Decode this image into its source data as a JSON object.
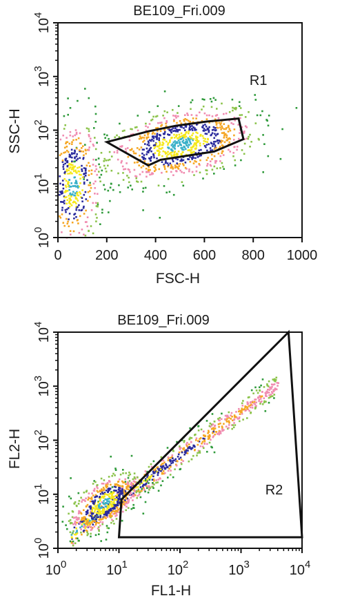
{
  "chart_data": [
    {
      "type": "scatter",
      "title": "BE109_Fri.009",
      "xlabel": "FSC-H",
      "ylabel": "SSC-H",
      "x_scale": "linear",
      "y_scale": "log",
      "xlim": [
        0,
        1000
      ],
      "ylim": [
        1,
        10000
      ],
      "x_ticks": [
        {
          "value": 0,
          "label": "0"
        },
        {
          "value": 200,
          "label": "200"
        },
        {
          "value": 400,
          "label": "400"
        },
        {
          "value": 600,
          "label": "600"
        },
        {
          "value": 800,
          "label": "800"
        },
        {
          "value": 1000,
          "label": "1000"
        }
      ],
      "y_ticks": [
        {
          "value": 1,
          "base": "10",
          "exp": "0"
        },
        {
          "value": 10,
          "base": "10",
          "exp": "1"
        },
        {
          "value": 100,
          "base": "10",
          "exp": "2"
        },
        {
          "value": 1000,
          "base": "10",
          "exp": "3"
        },
        {
          "value": 10000,
          "base": "10",
          "exp": "4"
        }
      ],
      "gate": {
        "label": "R1",
        "label_at": [
          785,
          700
        ],
        "polygon": [
          [
            200,
            60
          ],
          [
            370,
            95
          ],
          [
            480,
            120
          ],
          [
            610,
            145
          ],
          [
            740,
            165
          ],
          [
            760,
            68
          ],
          [
            640,
            40
          ],
          [
            420,
            28
          ],
          [
            370,
            22
          ],
          [
            200,
            60
          ]
        ]
      },
      "density_colors": [
        "#2e9a3a",
        "#8bc34a",
        "#f08cb0",
        "#f5a623",
        "#2a2a9c",
        "#f5e81a",
        "#3ab0c8"
      ],
      "populations": [
        {
          "name": "main",
          "x_center": 500,
          "x_spread": 150,
          "logy_center": 1.75,
          "logy_spread": 0.32,
          "n": 900
        },
        {
          "name": "debris",
          "x_center": 60,
          "x_spread": 55,
          "logy_center": 1.0,
          "logy_spread": 0.6,
          "n": 450
        }
      ]
    },
    {
      "type": "scatter",
      "title": "BE109_Fri.009",
      "xlabel": "FL1-H",
      "ylabel": "FL2-H",
      "x_scale": "log",
      "y_scale": "log",
      "xlim": [
        1,
        10000
      ],
      "ylim": [
        1,
        10000
      ],
      "x_ticks": [
        {
          "value": 1,
          "base": "10",
          "exp": "0"
        },
        {
          "value": 10,
          "base": "10",
          "exp": "1"
        },
        {
          "value": 100,
          "base": "10",
          "exp": "2"
        },
        {
          "value": 1000,
          "base": "10",
          "exp": "3"
        },
        {
          "value": 10000,
          "base": "10",
          "exp": "4"
        }
      ],
      "y_ticks": [
        {
          "value": 1,
          "base": "10",
          "exp": "0"
        },
        {
          "value": 10,
          "base": "10",
          "exp": "1"
        },
        {
          "value": 100,
          "base": "10",
          "exp": "2"
        },
        {
          "value": 1000,
          "base": "10",
          "exp": "3"
        },
        {
          "value": 10000,
          "base": "10",
          "exp": "4"
        }
      ],
      "gate": {
        "label": "R2",
        "label_at": [
          2500,
          10
        ],
        "polygon": [
          [
            6000,
            10000
          ],
          [
            11,
            8
          ],
          [
            10,
            1.6
          ],
          [
            10000,
            1.6
          ]
        ]
      },
      "density_colors": [
        "#2e9a3a",
        "#8bc34a",
        "#f08cb0",
        "#f5a623",
        "#2a2a9c",
        "#f5e81a",
        "#3ab0c8"
      ],
      "populations": [
        {
          "name": "diagonal",
          "logx_start": 0.2,
          "logx_end": 3.6,
          "slope": 0.82,
          "intercept": 0.1,
          "n": 800
        },
        {
          "name": "cluster",
          "logx_center": 0.75,
          "logy_center": 0.85,
          "spread": 0.28,
          "n": 550
        }
      ]
    }
  ]
}
